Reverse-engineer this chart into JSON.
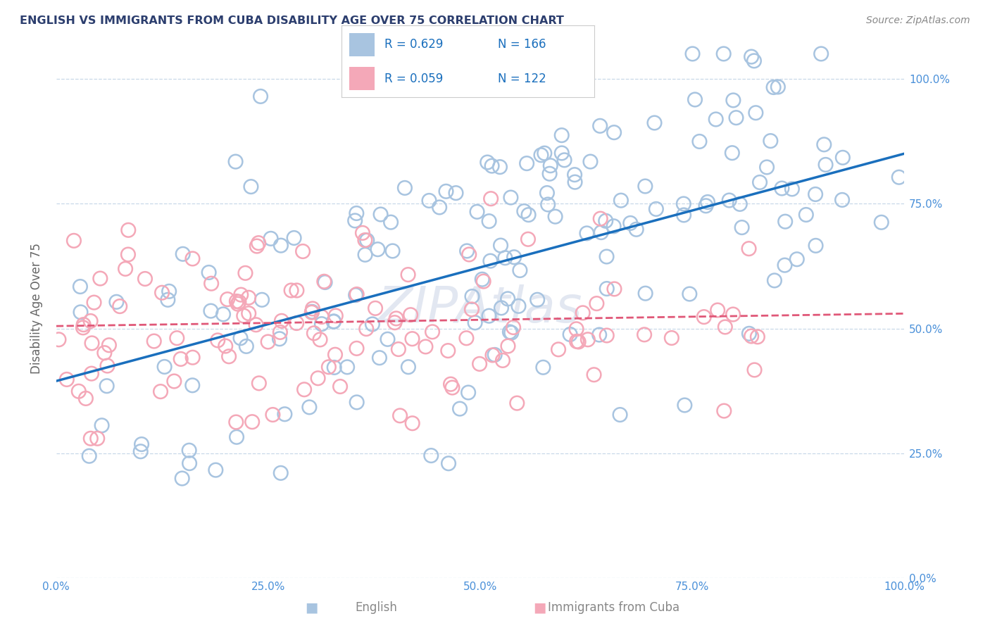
{
  "title": "ENGLISH VS IMMIGRANTS FROM CUBA DISABILITY AGE OVER 75 CORRELATION CHART",
  "source": "Source: ZipAtlas.com",
  "ylabel": "Disability Age Over 75",
  "xlabel_english": "English",
  "xlabel_cuba": "Immigrants from Cuba",
  "xmin": 0.0,
  "xmax": 1.0,
  "ymin": 0.0,
  "ymax": 1.08,
  "english_R": 0.629,
  "english_N": 166,
  "cuba_R": 0.059,
  "cuba_N": 122,
  "english_color": "#a8c4e0",
  "cuba_color": "#f4a8b8",
  "english_line_color": "#1a6fbd",
  "cuba_line_color": "#e05878",
  "title_color": "#2c3e6e",
  "legend_text_color": "#1a6fbd",
  "tick_label_color": "#4a90d9",
  "axis_label_color": "#666666",
  "background_color": "#ffffff",
  "watermark": "ZIPAtlas",
  "watermark_color": "#d0d8e8",
  "grid_color": "#c8d8e8",
  "english_line_intercept": 0.395,
  "english_line_slope": 0.455,
  "cuba_line_intercept": 0.505,
  "cuba_line_slope": 0.025
}
